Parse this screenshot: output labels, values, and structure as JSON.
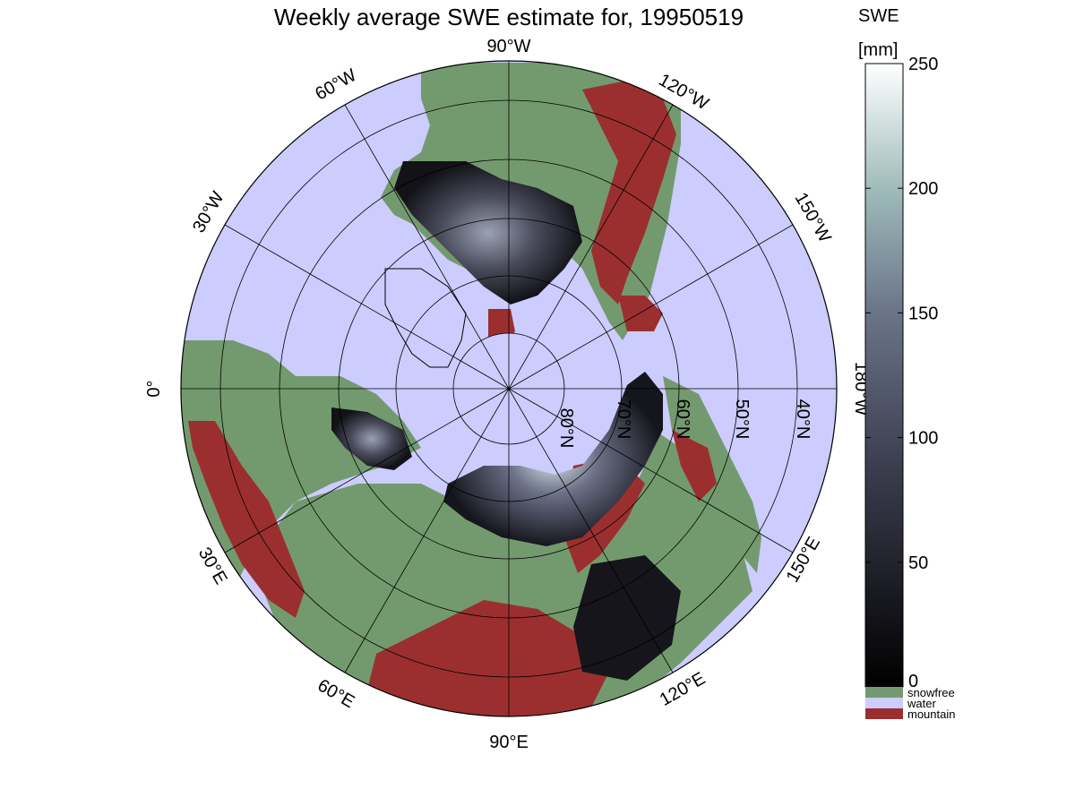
{
  "title": "Weekly average SWE estimate for, 19950519",
  "colorbar": {
    "label_line1": "SWE",
    "label_line2": "[mm]",
    "ticks": [
      0,
      50,
      100,
      150,
      200,
      250
    ],
    "range": [
      0,
      250
    ],
    "colors": {
      "low": "#000000",
      "mid": "#6a6f86",
      "high": "#ffffff"
    }
  },
  "categories": [
    {
      "name": "snowfree",
      "color": "#739a6e"
    },
    {
      "name": "water",
      "color": "#ccccff"
    },
    {
      "name": "mountain",
      "color": "#9b2f2f"
    }
  ],
  "map": {
    "projection": "north-polar-stereographic",
    "ocean_color": "#ccccff",
    "land_color": "#739a6e",
    "mountain_color": "#9b2f2f",
    "meridian_labels": [
      "90°W",
      "120°W",
      "150°W",
      "180°W",
      "150°E",
      "120°E",
      "90°E",
      "60°E",
      "30°E",
      "0°",
      "30°W",
      "60°W"
    ],
    "parallel_labels": [
      "40°N",
      "50°N",
      "60°N",
      "70°N",
      "80°N"
    ]
  }
}
